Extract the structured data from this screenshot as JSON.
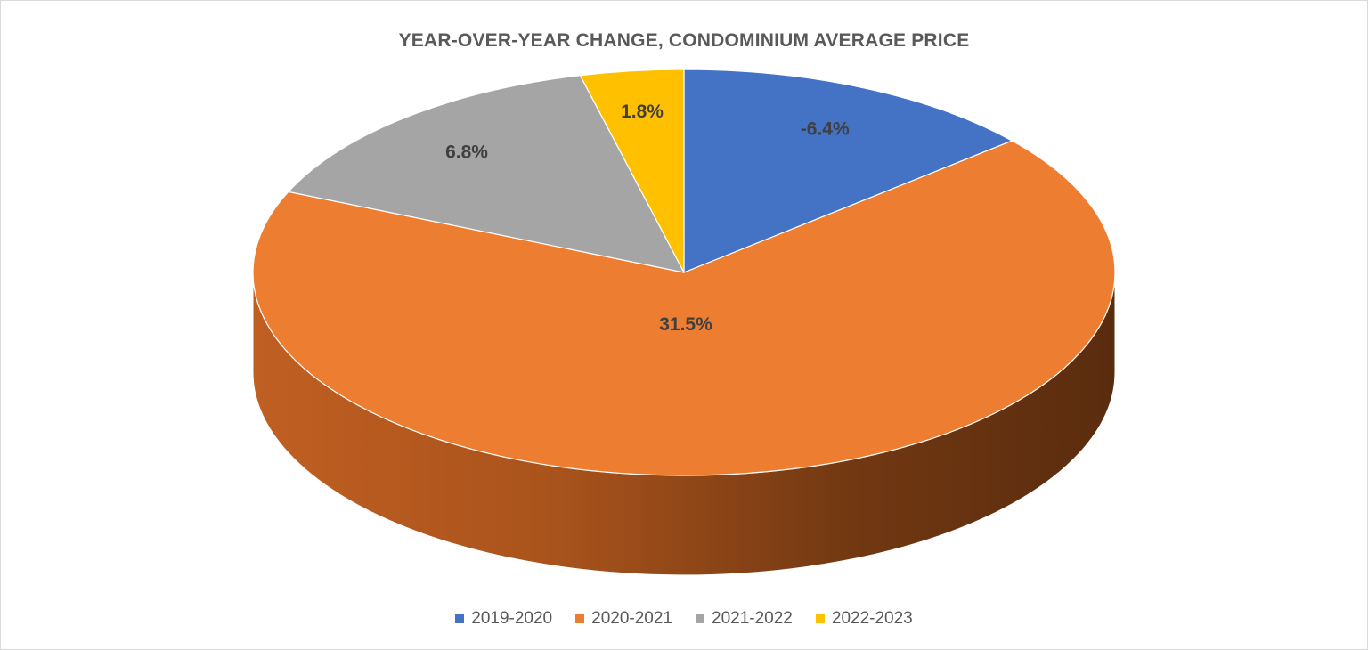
{
  "chart_data": {
    "type": "pie",
    "title": "YEAR-OVER-YEAR CHANGE, CONDOMINIUM AVERAGE PRICE",
    "categories": [
      "2019-2020",
      "2020-2021",
      "2021-2022",
      "2022-2023"
    ],
    "values": [
      -6.4,
      31.5,
      6.8,
      1.8
    ],
    "labels": [
      "-6.4%",
      "31.5%",
      "6.8%",
      "1.8%"
    ],
    "colors": [
      "#4472c4",
      "#ed7d31",
      "#a5a5a5",
      "#ffc000"
    ],
    "legend_position": "bottom",
    "style": "3d"
  }
}
